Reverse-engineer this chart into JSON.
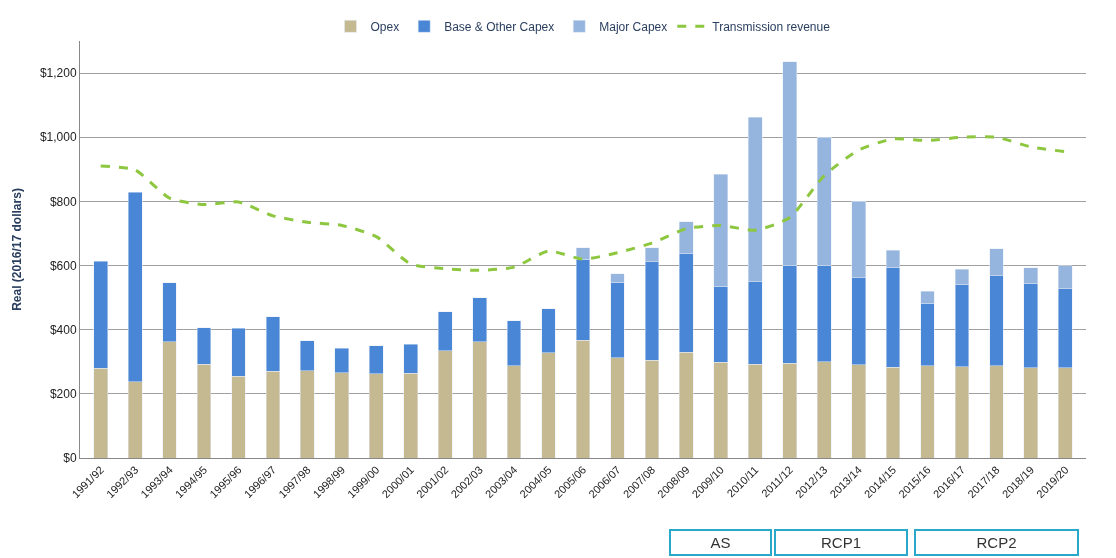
{
  "chart_data": {
    "type": "bar",
    "stacked": true,
    "ylabel": "Real (2016/17 dollars)",
    "categories": [
      "1991/92",
      "1992/93",
      "1993/94",
      "1994/95",
      "1995/96",
      "1996/97",
      "1997/98",
      "1998/99",
      "1999/00",
      "2000/01",
      "2001/02",
      "2002/03",
      "2003/04",
      "2004/05",
      "2005/06",
      "2006/07",
      "2007/08",
      "2008/09",
      "2009/10",
      "2010/11",
      "2011/12",
      "2012/13",
      "2013/14",
      "2014/15",
      "2015/16",
      "2016/17",
      "2017/18",
      "2018/19",
      "2019/20"
    ],
    "series": [
      {
        "name": "Opex",
        "color": "#c4b991",
        "values": [
          280,
          237,
          362,
          292,
          255,
          270,
          272,
          266,
          263,
          265,
          335,
          363,
          287,
          328,
          367,
          312,
          305,
          330,
          298,
          292,
          295,
          300,
          290,
          283,
          287,
          285,
          287,
          282,
          282
        ]
      },
      {
        "name": "Base & Other Capex",
        "color": "#4a86d6",
        "values": [
          333,
          591,
          184,
          114,
          149,
          170,
          94,
          76,
          87,
          90,
          121,
          137,
          141,
          138,
          253,
          236,
          307,
          308,
          237,
          258,
          305,
          300,
          272,
          312,
          196,
          257,
          281,
          263,
          245
        ]
      },
      {
        "name": "Major Capex",
        "color": "#95b4de",
        "values": [
          null,
          null,
          null,
          null,
          null,
          null,
          null,
          null,
          null,
          null,
          null,
          null,
          null,
          null,
          36,
          26,
          43,
          99,
          350,
          512,
          635,
          400,
          238,
          53,
          37,
          46,
          85,
          48,
          73
        ]
      },
      {
        "name": "Transmission revenue",
        "type": "line",
        "color": "#8dc63f",
        "line_style": "dashed",
        "marker": "none",
        "values": [
          910,
          898,
          810,
          790,
          798,
          755,
          735,
          725,
          690,
          605,
          590,
          585,
          595,
          645,
          620,
          640,
          670,
          715,
          725,
          710,
          750,
          880,
          960,
          995,
          990,
          1000,
          1000,
          970,
          955
        ]
      }
    ],
    "ylim": [
      0,
      1300
    ],
    "yticks": [
      {
        "value": 0,
        "label": "$0"
      },
      {
        "value": 200,
        "label": "$200"
      },
      {
        "value": 400,
        "label": "$400"
      },
      {
        "value": 600,
        "label": "$600"
      },
      {
        "value": 800,
        "label": "$800"
      },
      {
        "value": 1000,
        "label": "$1,000"
      },
      {
        "value": 1200,
        "label": "$1,200"
      }
    ],
    "grid": "y",
    "legend": "top",
    "annotations": [
      "AS",
      "RCP1",
      "RCP2"
    ]
  }
}
